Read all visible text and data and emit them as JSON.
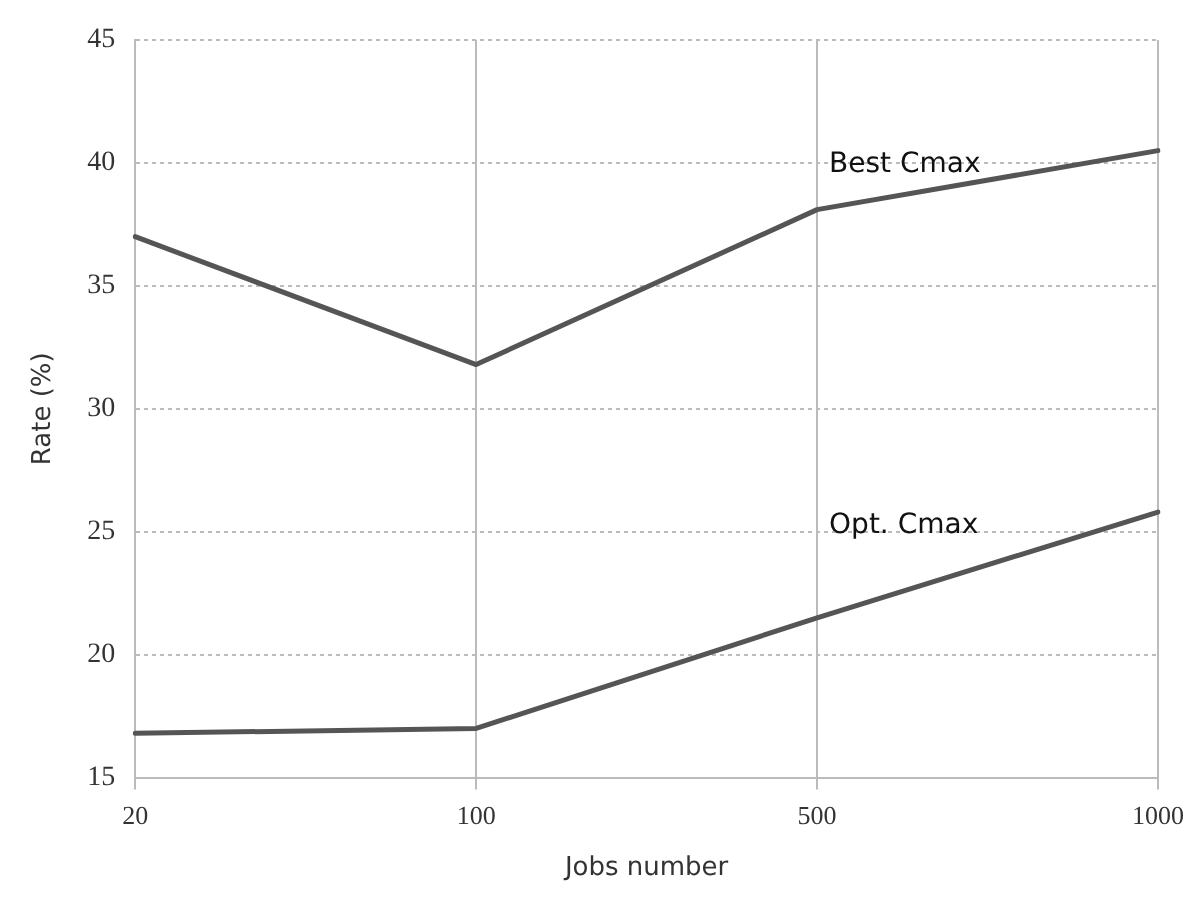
{
  "chart_data": {
    "type": "line",
    "xlabel": "Jobs number",
    "ylabel": "Rate (%)",
    "categories": [
      "20",
      "100",
      "500",
      "1000"
    ],
    "series": [
      {
        "name": "Best Cmax",
        "color": "#555555",
        "values": [
          37.0,
          31.8,
          38.1,
          40.5
        ]
      },
      {
        "name": "Opt. Cmax",
        "color": "#555555",
        "values": [
          16.8,
          17.0,
          21.5,
          25.8
        ]
      }
    ],
    "ylim": [
      15,
      45
    ],
    "yticks": [
      15,
      20,
      25,
      30,
      35,
      40,
      45
    ],
    "grid": true,
    "legend": false,
    "marker": "none",
    "line_style": "solid"
  }
}
